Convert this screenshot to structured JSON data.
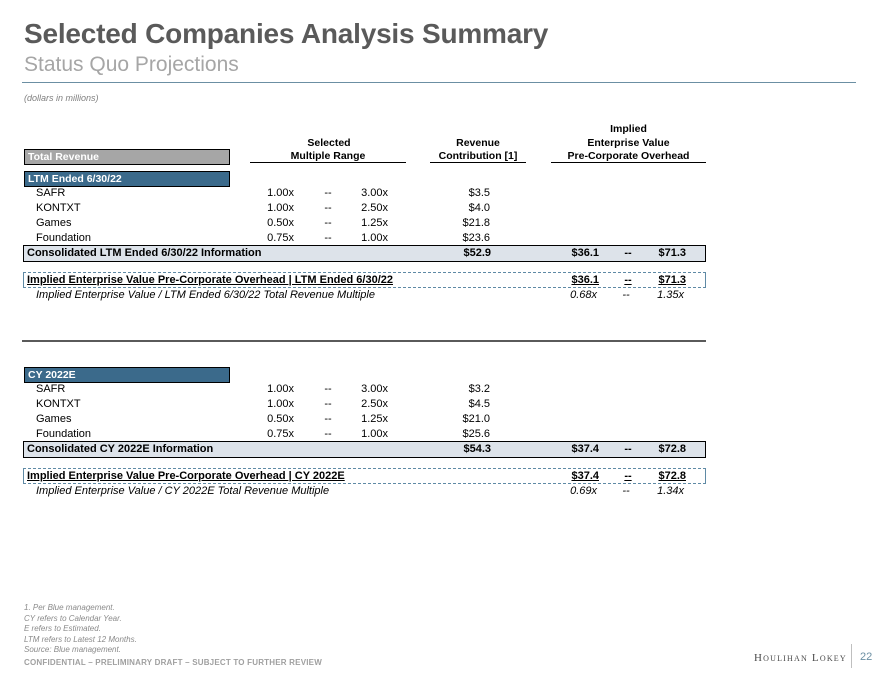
{
  "title": "Selected Companies Analysis Summary",
  "subtitle": "Status Quo Projections",
  "units_note": "(dollars in millions)",
  "headers": {
    "total_revenue": "Total Revenue",
    "multiple_line1": "Selected",
    "multiple_line2": "Multiple Range",
    "revenue_line1": "Revenue",
    "revenue_line2": "Contribution [1]",
    "ev_line1": "Implied",
    "ev_line2": "Enterprise Value",
    "ev_line3": "Pre-Corporate Overhead"
  },
  "sections": [
    {
      "label": "LTM Ended 6/30/22",
      "rows": [
        {
          "name": "SAFR",
          "low": "1.00x",
          "dash": "--",
          "high": "3.00x",
          "revenue": "$3.5"
        },
        {
          "name": "KONTXT",
          "low": "1.00x",
          "dash": "--",
          "high": "2.50x",
          "revenue": "$4.0"
        },
        {
          "name": "Games",
          "low": "0.50x",
          "dash": "--",
          "high": "1.25x",
          "revenue": "$21.8"
        },
        {
          "name": "Foundation",
          "low": "0.75x",
          "dash": "--",
          "high": "1.00x",
          "revenue": "$23.6"
        }
      ],
      "consolidated": {
        "label": "Consolidated LTM Ended 6/30/22 Information",
        "revenue": "$52.9",
        "ev_low": "$36.1",
        "dash": "--",
        "ev_high": "$71.3"
      },
      "implied": {
        "label": "Implied Enterprise Value Pre-Corporate Overhead | LTM Ended 6/30/22",
        "ev_low": "$36.1",
        "dash": "--",
        "ev_high": "$71.3"
      },
      "multiple": {
        "label": "Implied Enterprise Value / LTM Ended 6/30/22 Total Revenue Multiple",
        "low": "0.68x",
        "dash": "--",
        "high": "1.35x"
      }
    },
    {
      "label": "CY 2022E",
      "rows": [
        {
          "name": "SAFR",
          "low": "1.00x",
          "dash": "--",
          "high": "3.00x",
          "revenue": "$3.2"
        },
        {
          "name": "KONTXT",
          "low": "1.00x",
          "dash": "--",
          "high": "2.50x",
          "revenue": "$4.5"
        },
        {
          "name": "Games",
          "low": "0.50x",
          "dash": "--",
          "high": "1.25x",
          "revenue": "$21.0"
        },
        {
          "name": "Foundation",
          "low": "0.75x",
          "dash": "--",
          "high": "1.00x",
          "revenue": "$25.6"
        }
      ],
      "consolidated": {
        "label": "Consolidated CY 2022E Information",
        "revenue": "$54.3",
        "ev_low": "$37.4",
        "dash": "--",
        "ev_high": "$72.8"
      },
      "implied": {
        "label": "Implied Enterprise Value Pre-Corporate Overhead | CY 2022E",
        "ev_low": "$37.4",
        "dash": "--",
        "ev_high": "$72.8"
      },
      "multiple": {
        "label": "Implied Enterprise Value / CY 2022E Total Revenue Multiple",
        "low": "0.69x",
        "dash": "--",
        "high": "1.34x"
      }
    }
  ],
  "footnotes": [
    "1.  Per Blue management.",
    "CY refers to Calendar Year.",
    "E refers to Estimated.",
    "LTM refers to Latest 12 Months.",
    "Source: Blue management."
  ],
  "confidential": "CONFIDENTIAL – PRELIMINARY DRAFT – SUBJECT TO FURTHER REVIEW",
  "logo_text": "Houlihan Lokey",
  "page_number": "22"
}
